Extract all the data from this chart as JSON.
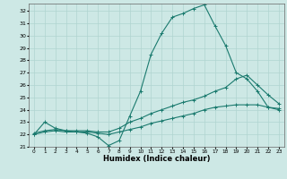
{
  "xlabel": "Humidex (Indice chaleur)",
  "bg_color": "#cde8e5",
  "grid_color": "#b0d4d0",
  "line_color": "#1a7a6e",
  "xlim": [
    -0.5,
    23.5
  ],
  "ylim": [
    21.0,
    32.6
  ],
  "yticks": [
    21,
    22,
    23,
    24,
    25,
    26,
    27,
    28,
    29,
    30,
    31,
    32
  ],
  "xticks": [
    0,
    1,
    2,
    3,
    4,
    5,
    6,
    7,
    8,
    9,
    10,
    11,
    12,
    13,
    14,
    15,
    16,
    17,
    18,
    19,
    20,
    21,
    22,
    23
  ],
  "series1_x": [
    0,
    1,
    2,
    3,
    4,
    5,
    6,
    7,
    8,
    9,
    10,
    11,
    12,
    13,
    14,
    15,
    16,
    17,
    18,
    19,
    20,
    21,
    22,
    23
  ],
  "series1_y": [
    22.0,
    23.0,
    22.5,
    22.3,
    22.2,
    22.1,
    21.8,
    21.1,
    21.5,
    23.5,
    25.5,
    28.5,
    30.2,
    31.5,
    31.8,
    32.2,
    32.5,
    30.8,
    29.2,
    27.0,
    26.5,
    25.5,
    24.2,
    24.0
  ],
  "series2_x": [
    0,
    1,
    2,
    3,
    4,
    5,
    6,
    7,
    8,
    9,
    10,
    11,
    12,
    13,
    14,
    15,
    16,
    17,
    18,
    19,
    20,
    21,
    22,
    23
  ],
  "series2_y": [
    22.1,
    22.3,
    22.4,
    22.3,
    22.3,
    22.3,
    22.2,
    22.2,
    22.5,
    23.0,
    23.3,
    23.7,
    24.0,
    24.3,
    24.6,
    24.8,
    25.1,
    25.5,
    25.8,
    26.5,
    26.8,
    26.0,
    25.2,
    24.5
  ],
  "series3_x": [
    0,
    1,
    2,
    3,
    4,
    5,
    6,
    7,
    8,
    9,
    10,
    11,
    12,
    13,
    14,
    15,
    16,
    17,
    18,
    19,
    20,
    21,
    22,
    23
  ],
  "series3_y": [
    22.0,
    22.2,
    22.3,
    22.2,
    22.2,
    22.2,
    22.1,
    22.0,
    22.2,
    22.4,
    22.6,
    22.9,
    23.1,
    23.3,
    23.5,
    23.7,
    24.0,
    24.2,
    24.3,
    24.4,
    24.4,
    24.4,
    24.2,
    24.1
  ]
}
